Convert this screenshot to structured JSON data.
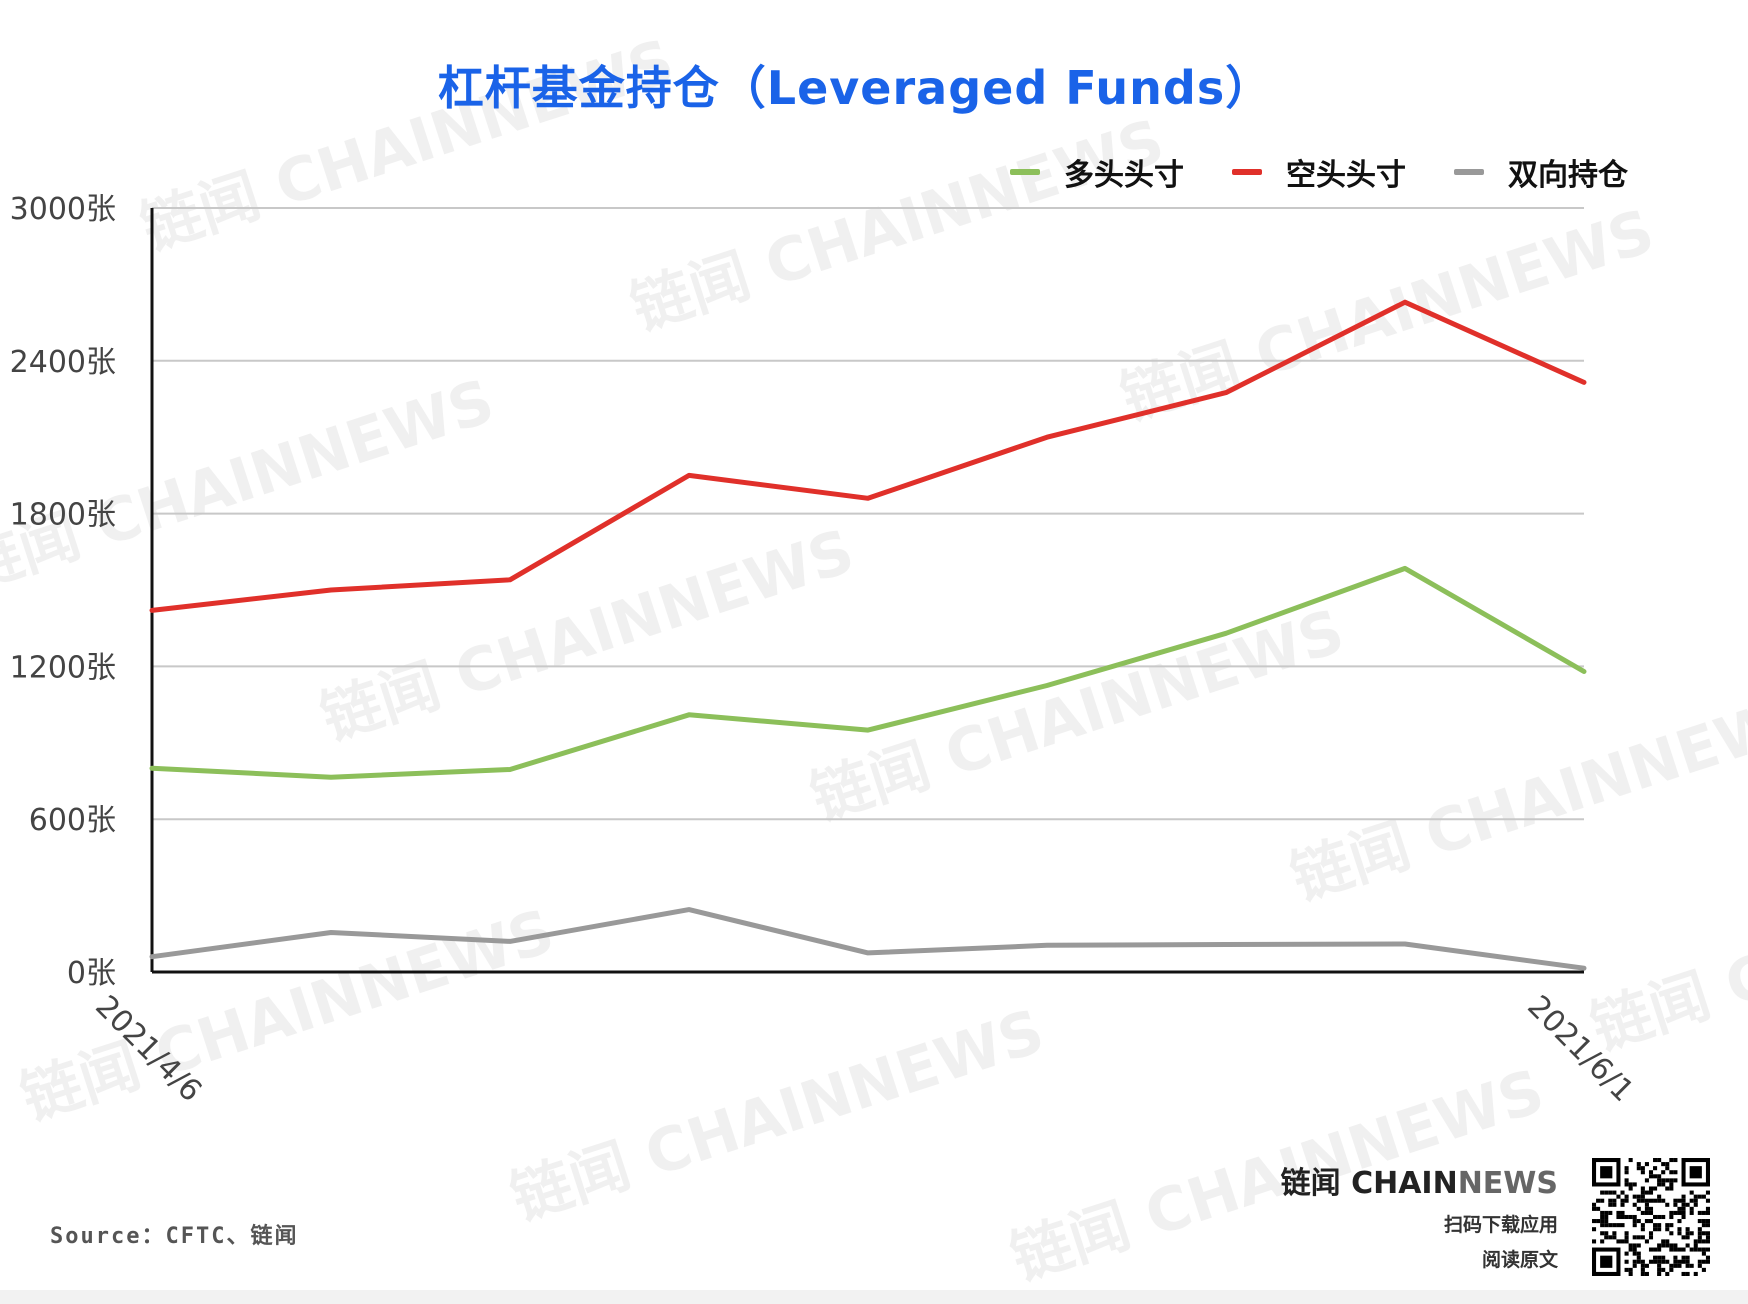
{
  "title": "杠杆基金持仓（Leveraged Funds）",
  "legend": [
    {
      "label": "多头头寸",
      "color": "#8cbf5a"
    },
    {
      "label": "空头头寸",
      "color": "#e0302a"
    },
    {
      "label": "双向持仓",
      "color": "#999999"
    }
  ],
  "source": "Source：CFTC、链闻",
  "brand": {
    "name_part1": "链闻 CHAIN",
    "name_part2": "NEWS",
    "line1": "扫码下载应用",
    "line2": "阅读原文"
  },
  "watermark_text": "链闻 CHAINNEWS",
  "chart_data": {
    "type": "line",
    "x": [
      "2021/4/6",
      "",
      "",
      "",
      "",
      "",
      "",
      "",
      "2021/6/1"
    ],
    "x_tick_labels": [
      "2021/4/6",
      "2021/6/1"
    ],
    "y_tick_labels": [
      "0张",
      "600张",
      "1200张",
      "1800张",
      "2400张",
      "3000张"
    ],
    "y_ticks": [
      0,
      600,
      1200,
      1800,
      2400,
      3000
    ],
    "ylim": [
      0,
      3000
    ],
    "grid": true,
    "legend_position": "top-right",
    "series": [
      {
        "name": "多头头寸",
        "color": "#8cbf5a",
        "values": [
          800,
          765,
          795,
          1010,
          950,
          1125,
          1330,
          1585,
          1180
        ]
      },
      {
        "name": "空头头寸",
        "color": "#e0302a",
        "values": [
          1420,
          1500,
          1540,
          1950,
          1860,
          2100,
          2275,
          2630,
          2315
        ]
      },
      {
        "name": "双向持仓",
        "color": "#999999",
        "values": [
          60,
          155,
          120,
          245,
          75,
          105,
          108,
          110,
          15
        ]
      }
    ]
  }
}
